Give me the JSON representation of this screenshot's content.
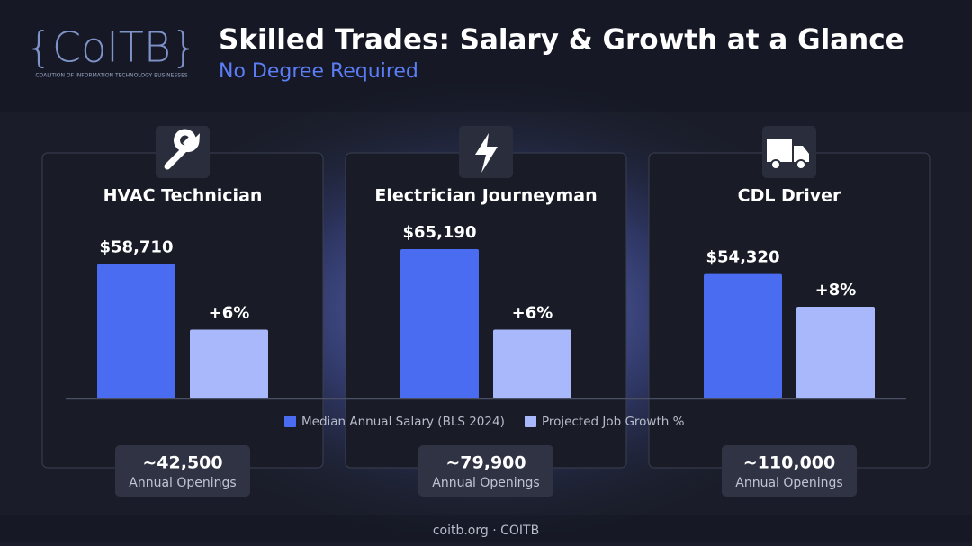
{
  "logo": {
    "name": "{CoITB}",
    "tagline": "COALITION OF INFORMATION TECHNOLOGY BUSINESSES"
  },
  "chart_data": {
    "type": "bar",
    "title": "Skilled Trades: Salary & Growth at a Glance",
    "subtitle": "No Degree Required",
    "categories": [
      "HVAC Technician",
      "Electrician Journeyman",
      "CDL Driver"
    ],
    "series": [
      {
        "name": "Median Annual Salary (BLS 2024)",
        "color": "#4a6cf0",
        "values": [
          58710,
          65190,
          54320
        ],
        "value_labels": [
          "$58,710",
          "$65,190",
          "$54,320"
        ]
      },
      {
        "name": "Projected Job Growth %",
        "color": "#a9b8fb",
        "values": [
          6,
          6,
          8
        ],
        "value_labels": [
          "+6%",
          "+6%",
          "+8%"
        ]
      }
    ],
    "openings": [
      "~42,500",
      "~79,900",
      "~110,000"
    ],
    "openings_label": "Annual Openings"
  },
  "footer": "coitb.org · COITB"
}
